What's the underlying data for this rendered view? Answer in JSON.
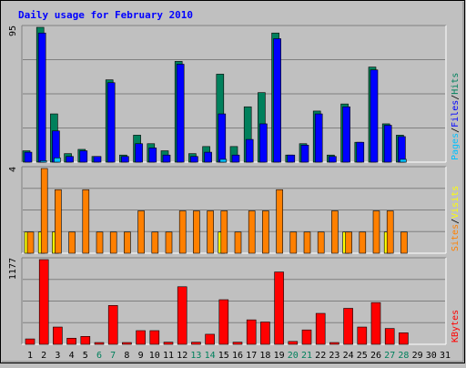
{
  "chart_data": {
    "type": "bar",
    "title": "Daily usage for February 2010",
    "days": [
      "1",
      "2",
      "3",
      "4",
      "5",
      "6",
      "7",
      "8",
      "9",
      "10",
      "11",
      "12",
      "13",
      "14",
      "15",
      "16",
      "17",
      "18",
      "19",
      "20",
      "21",
      "22",
      "23",
      "24",
      "25",
      "26",
      "27",
      "28",
      "29",
      "30",
      "31"
    ],
    "weekend_days": [
      "6",
      "7",
      "13",
      "14",
      "20",
      "21",
      "27",
      "28"
    ],
    "colors": {
      "background": "#c0c0c0",
      "title": "#0000ff",
      "hits": "#00805c",
      "files": "#0000ff",
      "pages": "#00c0ff",
      "visits": "#ffff00",
      "sites": "#ff8000",
      "kbytes": "#ff0000",
      "weekend_label": "#00805c",
      "weekday_label": "#000000",
      "gridline": "#808080"
    },
    "panels": [
      {
        "id": "hits",
        "max_label": "95",
        "ymax": 95,
        "legend": [
          {
            "text": "Hits",
            "color": "#00805c"
          },
          {
            "text": "/",
            "color": "#000000"
          },
          {
            "text": "Files",
            "color": "#0000ff"
          },
          {
            "text": "/",
            "color": "#000000"
          },
          {
            "text": "Pages",
            "color": "#00c0ff"
          }
        ],
        "series": [
          {
            "name": "Hits",
            "values": [
              8,
              95,
              34,
              6,
              9,
              4,
              58,
              5,
              19,
              13,
              8,
              71,
              6,
              11,
              62,
              11,
              39,
              49,
              91,
              5,
              13,
              36,
              5,
              41,
              14,
              67,
              27,
              19,
              0,
              0,
              0
            ]
          },
          {
            "name": "Files",
            "values": [
              7,
              91,
              22,
              4,
              8,
              4,
              56,
              4,
              13,
              10,
              5,
              69,
              4,
              7,
              34,
              5,
              16,
              27,
              87,
              5,
              12,
              34,
              4,
              39,
              14,
              65,
              26,
              18,
              0,
              0,
              0
            ]
          },
          {
            "name": "Pages",
            "values": [
              0,
              1,
              3,
              0,
              0,
              0,
              0,
              0,
              0,
              0,
              0,
              0,
              0,
              0,
              2,
              0,
              0,
              0,
              0,
              0,
              0,
              0,
              0,
              0,
              0,
              0,
              0,
              2,
              0,
              0,
              0
            ]
          }
        ]
      },
      {
        "id": "sites",
        "max_label": "4",
        "ymax": 4,
        "legend": [
          {
            "text": "Visits",
            "color": "#ffff00"
          },
          {
            "text": "/",
            "color": "#000000"
          },
          {
            "text": "Sites",
            "color": "#ff8000"
          }
        ],
        "series": [
          {
            "name": "Visits",
            "values": [
              1,
              1,
              1,
              0,
              0,
              0,
              0,
              0,
              0,
              0,
              0,
              0,
              0,
              0,
              1,
              0,
              0,
              0,
              0,
              0,
              0,
              0,
              0,
              1,
              0,
              0,
              1,
              0,
              0,
              0,
              0
            ]
          },
          {
            "name": "Sites",
            "values": [
              1,
              4,
              3,
              1,
              3,
              1,
              1,
              1,
              2,
              1,
              1,
              2,
              2,
              2,
              2,
              1,
              2,
              2,
              3,
              1,
              1,
              1,
              2,
              1,
              1,
              2,
              2,
              1,
              0,
              0,
              0
            ]
          }
        ]
      },
      {
        "id": "kbytes",
        "max_label": "1177",
        "ymax": 1177,
        "legend": [
          {
            "text": "KBytes",
            "color": "#ff0000"
          }
        ],
        "series": [
          {
            "name": "KBytes",
            "values": [
              75,
              1177,
              240,
              85,
              110,
              25,
              540,
              25,
              190,
              190,
              30,
              800,
              30,
              140,
              620,
              30,
              340,
              310,
              1005,
              40,
              200,
              430,
              25,
              500,
              240,
              580,
              220,
              160,
              0,
              0,
              0
            ]
          }
        ]
      }
    ]
  }
}
